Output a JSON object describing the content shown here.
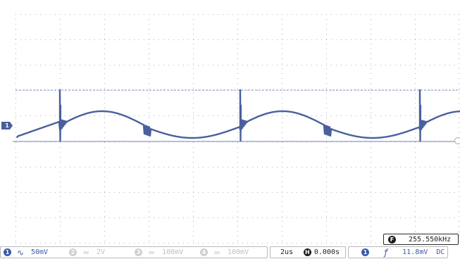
{
  "channel_marker": "1",
  "frequency": {
    "badge": "F",
    "value": "255.550kHz"
  },
  "channels": [
    {
      "num": "1",
      "coupling_icon": "ac-coupling-icon",
      "coupling_glyph": "∿",
      "scale": "50mV",
      "active": true
    },
    {
      "num": "2",
      "coupling_icon": "dc-coupling-icon",
      "coupling_glyph": "═",
      "scale": "2V",
      "active": false
    },
    {
      "num": "3",
      "coupling_icon": "dc-coupling-icon",
      "coupling_glyph": "═",
      "scale": "100mV",
      "active": false
    },
    {
      "num": "4",
      "coupling_icon": "dc-coupling-icon",
      "coupling_glyph": "═",
      "scale": "100mV",
      "active": false
    }
  ],
  "timebase": {
    "scale": "2us",
    "h_badge": "H",
    "position": "0.000s"
  },
  "trigger": {
    "source": "1",
    "slope_icon": "rising-edge-icon",
    "slope_glyph": "ƒ",
    "level": "11.8mV",
    "coupling": "DC"
  },
  "colors": {
    "trace": "#4a5f9e",
    "grid_dot": "#b0b0b0",
    "accent": "#3d5aa8"
  }
}
